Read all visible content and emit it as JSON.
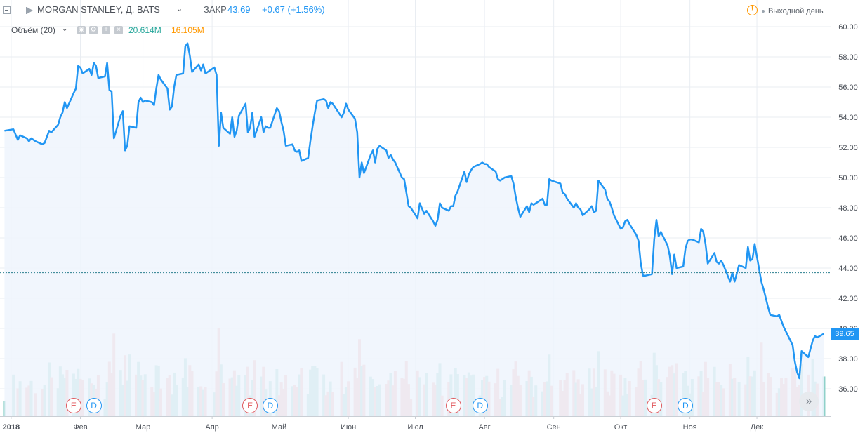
{
  "header": {
    "symbol": "MORGAN STANLEY, Д, BATS",
    "chevron": "⌄",
    "close_label": "ЗАКР",
    "close_value": "43.69",
    "change": "+0.67 (+1.56%)",
    "warning_icon": "!",
    "holiday_text": "Выходной день"
  },
  "volume_legend": {
    "name": "Объём (20)",
    "chevron": "⌄",
    "value_green": "20.614M",
    "value_red": "16.105M"
  },
  "events": [
    {
      "type": "E",
      "x": "2018-01-29"
    },
    {
      "type": "D",
      "x": "2018-02-07"
    },
    {
      "type": "E",
      "x": "2018-04-18"
    },
    {
      "type": "D",
      "x": "2018-04-27"
    },
    {
      "type": "E",
      "x": "2018-07-18"
    },
    {
      "type": "D",
      "x": "2018-07-30"
    },
    {
      "type": "E",
      "x": "2018-10-16"
    },
    {
      "type": "D",
      "x": "2018-10-30"
    }
  ],
  "colors": {
    "line": "#2196f3",
    "area": "#eef5fd",
    "vol_up": "#8fd1c9",
    "vol_down": "#f1a7a8",
    "grid": "#e9edf2",
    "ref_line": "#2a7f8f"
  },
  "chart_data": {
    "type": "line",
    "title": "MORGAN STANLEY, Д, BATS",
    "ylim": [
      34,
      61
    ],
    "yticks": [
      "36.00",
      "38.00",
      "40.00",
      "42.00",
      "44.00",
      "46.00",
      "48.00",
      "50.00",
      "52.00",
      "54.00",
      "56.00",
      "58.00",
      "60.00"
    ],
    "xticks": [
      {
        "label": "2018",
        "x": "2018-01-01"
      },
      {
        "label": "Фев",
        "x": "2018-02-01"
      },
      {
        "label": "Мар",
        "x": "2018-03-01"
      },
      {
        "label": "Апр",
        "x": "2018-04-01"
      },
      {
        "label": "Май",
        "x": "2018-05-01"
      },
      {
        "label": "Июн",
        "x": "2018-06-01"
      },
      {
        "label": "Июл",
        "x": "2018-07-01"
      },
      {
        "label": "Авг",
        "x": "2018-08-01"
      },
      {
        "label": "Сен",
        "x": "2018-09-01"
      },
      {
        "label": "Окт",
        "x": "2018-10-01"
      },
      {
        "label": "Ноя",
        "x": "2018-11-01"
      },
      {
        "label": "Дек",
        "x": "2018-12-01"
      }
    ],
    "reference_price": 43.69,
    "last_price_label": "39.65",
    "grid": true,
    "series": [
      {
        "values": [
          [
            "2017-12-29",
            53.1
          ],
          [
            "2018-01-02",
            53.2
          ],
          [
            "2018-01-04",
            52.5
          ],
          [
            "2018-01-05",
            52.8
          ],
          [
            "2018-01-08",
            52.6
          ],
          [
            "2018-01-09",
            52.4
          ],
          [
            "2018-01-10",
            52.6
          ],
          [
            "2018-01-12",
            52.4
          ],
          [
            "2018-01-15",
            52.2
          ],
          [
            "2018-01-16",
            52.3
          ],
          [
            "2018-01-18",
            53.1
          ],
          [
            "2018-01-19",
            53.0
          ],
          [
            "2018-01-22",
            53.5
          ],
          [
            "2018-01-23",
            54.0
          ],
          [
            "2018-01-24",
            54.3
          ],
          [
            "2018-01-25",
            55.0
          ],
          [
            "2018-01-26",
            54.6
          ],
          [
            "2018-01-29",
            55.6
          ],
          [
            "2018-01-30",
            55.9
          ],
          [
            "2018-01-31",
            57.4
          ],
          [
            "2018-02-01",
            57.3
          ],
          [
            "2018-02-02",
            56.9
          ],
          [
            "2018-02-05",
            57.2
          ],
          [
            "2018-02-06",
            56.8
          ],
          [
            "2018-02-07",
            57.6
          ],
          [
            "2018-02-08",
            57.4
          ],
          [
            "2018-02-09",
            56.6
          ],
          [
            "2018-02-12",
            56.7
          ],
          [
            "2018-02-13",
            57.6
          ],
          [
            "2018-02-14",
            55.8
          ],
          [
            "2018-02-15",
            55.7
          ],
          [
            "2018-02-16",
            52.6
          ],
          [
            "2018-02-19",
            54.1
          ],
          [
            "2018-02-20",
            54.4
          ],
          [
            "2018-02-21",
            51.8
          ],
          [
            "2018-02-22",
            52.1
          ],
          [
            "2018-02-23",
            53.4
          ],
          [
            "2018-02-26",
            53.3
          ],
          [
            "2018-02-27",
            55.0
          ],
          [
            "2018-02-28",
            55.3
          ],
          [
            "2018-03-01",
            55.0
          ],
          [
            "2018-03-02",
            55.1
          ],
          [
            "2018-03-05",
            55.0
          ],
          [
            "2018-03-06",
            54.8
          ],
          [
            "2018-03-07",
            55.9
          ],
          [
            "2018-03-08",
            56.8
          ],
          [
            "2018-03-09",
            56.5
          ],
          [
            "2018-03-12",
            55.9
          ],
          [
            "2018-03-13",
            54.5
          ],
          [
            "2018-03-14",
            54.7
          ],
          [
            "2018-03-15",
            56.0
          ],
          [
            "2018-03-16",
            56.8
          ],
          [
            "2018-03-19",
            56.9
          ],
          [
            "2018-03-20",
            58.7
          ],
          [
            "2018-03-21",
            58.9
          ],
          [
            "2018-03-22",
            58.1
          ],
          [
            "2018-03-23",
            57.0
          ],
          [
            "2018-03-26",
            57.5
          ],
          [
            "2018-03-27",
            57.1
          ],
          [
            "2018-03-28",
            57.5
          ],
          [
            "2018-03-29",
            56.9
          ],
          [
            "2018-04-02",
            57.3
          ],
          [
            "2018-04-03",
            56.8
          ],
          [
            "2018-04-04",
            52.1
          ],
          [
            "2018-04-05",
            54.3
          ],
          [
            "2018-04-06",
            53.3
          ],
          [
            "2018-04-09",
            52.9
          ],
          [
            "2018-04-10",
            54.0
          ],
          [
            "2018-04-11",
            52.7
          ],
          [
            "2018-04-12",
            53.1
          ],
          [
            "2018-04-13",
            54.1
          ],
          [
            "2018-04-16",
            54.9
          ],
          [
            "2018-04-17",
            53.0
          ],
          [
            "2018-04-18",
            53.3
          ],
          [
            "2018-04-19",
            54.3
          ],
          [
            "2018-04-20",
            52.7
          ],
          [
            "2018-04-23",
            54.0
          ],
          [
            "2018-04-24",
            53.0
          ],
          [
            "2018-04-25",
            53.4
          ],
          [
            "2018-04-26",
            53.3
          ],
          [
            "2018-04-27",
            53.3
          ],
          [
            "2018-04-30",
            54.6
          ],
          [
            "2018-05-01",
            54.4
          ],
          [
            "2018-05-02",
            53.7
          ],
          [
            "2018-05-03",
            53.1
          ],
          [
            "2018-05-04",
            52.1
          ],
          [
            "2018-05-07",
            52.2
          ],
          [
            "2018-05-08",
            51.8
          ],
          [
            "2018-05-09",
            51.7
          ],
          [
            "2018-05-10",
            51.8
          ],
          [
            "2018-05-11",
            51.1
          ],
          [
            "2018-05-14",
            51.3
          ],
          [
            "2018-05-15",
            52.4
          ],
          [
            "2018-05-16",
            53.4
          ],
          [
            "2018-05-17",
            54.3
          ],
          [
            "2018-05-18",
            55.1
          ],
          [
            "2018-05-21",
            55.2
          ],
          [
            "2018-05-22",
            55.1
          ],
          [
            "2018-05-23",
            54.6
          ],
          [
            "2018-05-24",
            55.0
          ],
          [
            "2018-05-25",
            54.9
          ],
          [
            "2018-05-29",
            54.0
          ],
          [
            "2018-05-30",
            54.3
          ],
          [
            "2018-05-31",
            54.9
          ],
          [
            "2018-06-01",
            54.5
          ],
          [
            "2018-06-04",
            53.9
          ],
          [
            "2018-06-05",
            53.0
          ],
          [
            "2018-06-06",
            50.0
          ],
          [
            "2018-06-07",
            51.0
          ],
          [
            "2018-06-08",
            50.3
          ],
          [
            "2018-06-11",
            51.5
          ],
          [
            "2018-06-12",
            51.8
          ],
          [
            "2018-06-13",
            51.0
          ],
          [
            "2018-06-14",
            51.9
          ],
          [
            "2018-06-15",
            52.1
          ],
          [
            "2018-06-18",
            51.8
          ],
          [
            "2018-06-19",
            51.3
          ],
          [
            "2018-06-20",
            51.5
          ],
          [
            "2018-06-21",
            51.2
          ],
          [
            "2018-06-22",
            51.0
          ],
          [
            "2018-06-25",
            50.0
          ],
          [
            "2018-06-26",
            49.9
          ],
          [
            "2018-06-27",
            49.0
          ],
          [
            "2018-06-28",
            48.1
          ],
          [
            "2018-06-29",
            48.0
          ],
          [
            "2018-07-02",
            47.3
          ],
          [
            "2018-07-03",
            48.3
          ],
          [
            "2018-07-05",
            47.6
          ],
          [
            "2018-07-06",
            47.8
          ],
          [
            "2018-07-09",
            47.1
          ],
          [
            "2018-07-10",
            46.8
          ],
          [
            "2018-07-11",
            47.2
          ],
          [
            "2018-07-12",
            48.3
          ],
          [
            "2018-07-13",
            48.0
          ],
          [
            "2018-07-16",
            47.8
          ],
          [
            "2018-07-17",
            48.1
          ],
          [
            "2018-07-18",
            48.1
          ],
          [
            "2018-07-19",
            48.8
          ],
          [
            "2018-07-20",
            49.1
          ],
          [
            "2018-07-23",
            50.4
          ],
          [
            "2018-07-24",
            49.7
          ],
          [
            "2018-07-25",
            50.2
          ],
          [
            "2018-07-26",
            50.5
          ],
          [
            "2018-07-27",
            50.7
          ],
          [
            "2018-07-30",
            50.9
          ],
          [
            "2018-07-31",
            51.0
          ],
          [
            "2018-08-01",
            50.9
          ],
          [
            "2018-08-02",
            50.9
          ],
          [
            "2018-08-03",
            50.7
          ],
          [
            "2018-08-06",
            50.4
          ],
          [
            "2018-08-07",
            49.9
          ],
          [
            "2018-08-08",
            49.8
          ],
          [
            "2018-08-09",
            49.9
          ],
          [
            "2018-08-10",
            50.0
          ],
          [
            "2018-08-13",
            50.1
          ],
          [
            "2018-08-14",
            49.6
          ],
          [
            "2018-08-15",
            48.7
          ],
          [
            "2018-08-16",
            48.0
          ],
          [
            "2018-08-17",
            47.4
          ],
          [
            "2018-08-20",
            48.1
          ],
          [
            "2018-08-21",
            47.7
          ],
          [
            "2018-08-22",
            48.3
          ],
          [
            "2018-08-23",
            48.2
          ],
          [
            "2018-08-24",
            48.3
          ],
          [
            "2018-08-27",
            48.6
          ],
          [
            "2018-08-28",
            48.2
          ],
          [
            "2018-08-29",
            48.2
          ],
          [
            "2018-08-30",
            49.9
          ],
          [
            "2018-08-31",
            49.8
          ],
          [
            "2018-09-04",
            49.6
          ],
          [
            "2018-09-05",
            49.0
          ],
          [
            "2018-09-06",
            48.9
          ],
          [
            "2018-09-07",
            48.6
          ],
          [
            "2018-09-10",
            48.0
          ],
          [
            "2018-09-11",
            48.3
          ],
          [
            "2018-09-12",
            48.0
          ],
          [
            "2018-09-13",
            47.9
          ],
          [
            "2018-09-14",
            47.5
          ],
          [
            "2018-09-17",
            47.9
          ],
          [
            "2018-09-18",
            48.1
          ],
          [
            "2018-09-19",
            47.7
          ],
          [
            "2018-09-20",
            47.8
          ],
          [
            "2018-09-21",
            49.8
          ],
          [
            "2018-09-24",
            49.2
          ],
          [
            "2018-09-25",
            48.6
          ],
          [
            "2018-09-26",
            48.4
          ],
          [
            "2018-09-27",
            48.0
          ],
          [
            "2018-09-28",
            47.5
          ],
          [
            "2018-10-01",
            46.6
          ],
          [
            "2018-10-02",
            46.7
          ],
          [
            "2018-10-03",
            47.1
          ],
          [
            "2018-10-04",
            47.2
          ],
          [
            "2018-10-05",
            46.9
          ],
          [
            "2018-10-08",
            46.2
          ],
          [
            "2018-10-09",
            45.8
          ],
          [
            "2018-10-10",
            44.3
          ],
          [
            "2018-10-11",
            43.5
          ],
          [
            "2018-10-12",
            43.5
          ],
          [
            "2018-10-15",
            43.6
          ],
          [
            "2018-10-16",
            45.9
          ],
          [
            "2018-10-17",
            47.2
          ],
          [
            "2018-10-18",
            46.1
          ],
          [
            "2018-10-19",
            46.4
          ],
          [
            "2018-10-22",
            45.5
          ],
          [
            "2018-10-23",
            44.8
          ],
          [
            "2018-10-24",
            43.6
          ],
          [
            "2018-10-25",
            44.9
          ],
          [
            "2018-10-26",
            44.0
          ],
          [
            "2018-10-29",
            44.1
          ],
          [
            "2018-10-30",
            45.3
          ],
          [
            "2018-10-31",
            45.8
          ],
          [
            "2018-11-01",
            45.9
          ],
          [
            "2018-11-02",
            45.9
          ],
          [
            "2018-11-05",
            45.7
          ],
          [
            "2018-11-06",
            46.6
          ],
          [
            "2018-11-07",
            46.4
          ],
          [
            "2018-11-08",
            45.6
          ],
          [
            "2018-11-09",
            44.3
          ],
          [
            "2018-11-12",
            45.0
          ],
          [
            "2018-11-13",
            44.4
          ],
          [
            "2018-11-14",
            44.3
          ],
          [
            "2018-11-15",
            44.5
          ],
          [
            "2018-11-16",
            44.2
          ],
          [
            "2018-11-19",
            43.1
          ],
          [
            "2018-11-20",
            43.7
          ],
          [
            "2018-11-21",
            43.1
          ],
          [
            "2018-11-23",
            44.2
          ],
          [
            "2018-11-26",
            44.0
          ],
          [
            "2018-11-27",
            45.4
          ],
          [
            "2018-11-28",
            44.5
          ],
          [
            "2018-11-29",
            44.6
          ],
          [
            "2018-11-30",
            45.6
          ],
          [
            "2018-12-03",
            43.1
          ],
          [
            "2018-12-04",
            42.6
          ],
          [
            "2018-12-06",
            41.4
          ],
          [
            "2018-12-07",
            40.9
          ],
          [
            "2018-12-10",
            40.8
          ],
          [
            "2018-12-11",
            40.9
          ],
          [
            "2018-12-12",
            40.5
          ],
          [
            "2018-12-13",
            40.1
          ],
          [
            "2018-12-14",
            39.8
          ],
          [
            "2018-12-17",
            38.9
          ],
          [
            "2018-12-18",
            37.8
          ],
          [
            "2018-12-19",
            37.1
          ],
          [
            "2018-12-20",
            36.7
          ],
          [
            "2018-12-21",
            38.5
          ],
          [
            "2018-12-24",
            38.1
          ],
          [
            "2018-12-26",
            39.2
          ],
          [
            "2018-12-27",
            39.5
          ],
          [
            "2018-12-28",
            39.4
          ],
          [
            "2018-12-31",
            39.65
          ]
        ]
      }
    ]
  }
}
